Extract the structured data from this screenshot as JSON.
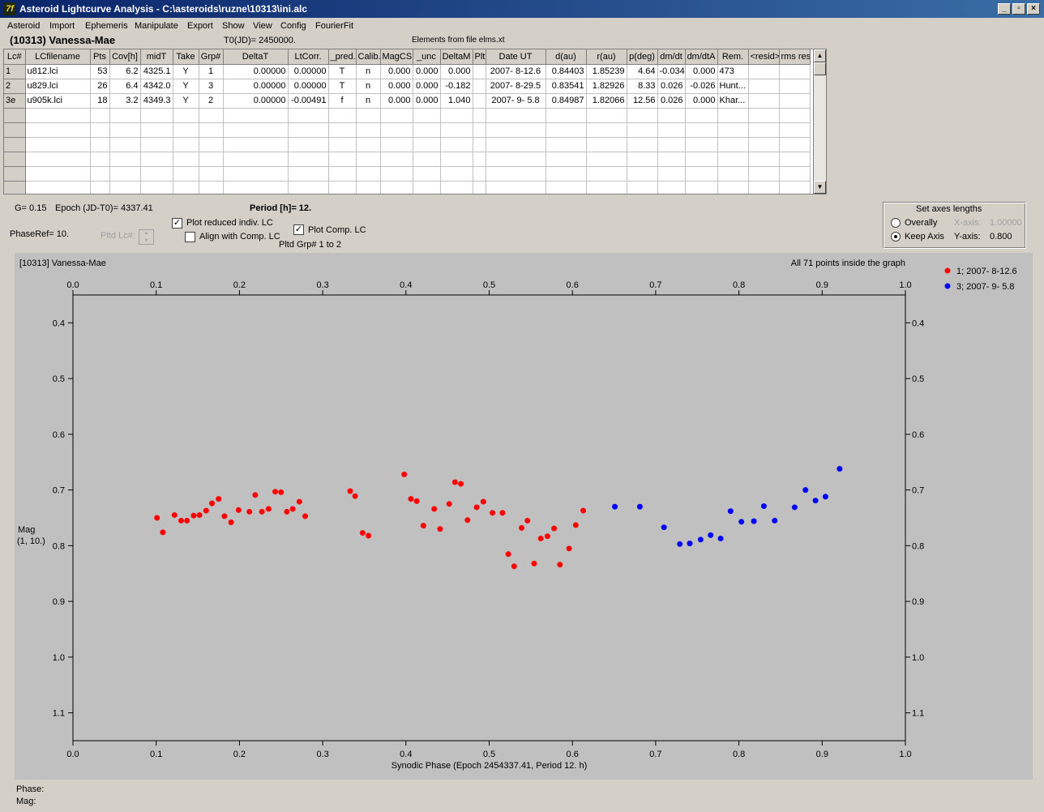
{
  "window": {
    "title": "Asteroid Lightcurve Analysis - C:\\asteroids\\ruzne\\10313\\ini.alc",
    "icon": "7f",
    "controls": [
      "_",
      "▫",
      "×"
    ]
  },
  "menu": [
    "Asteroid",
    "Import",
    "Ephemeris",
    "Manipulate",
    "Export",
    "Show",
    "View",
    "Config",
    "FourierFit"
  ],
  "header": {
    "asteroid_name": "(10313) Vanessa-Mae",
    "t0": "T0(JD)= 2450000.",
    "elements": "Elements from file elms.xt"
  },
  "grid": {
    "columns": [
      "Lc#",
      "LCfilename",
      "Pts",
      "Cov[h]",
      "midT",
      "Take",
      "Grp#",
      "DeltaT",
      "LtCorr.",
      "_pred.",
      "Calib.",
      "MagCS",
      "_unc",
      "DeltaM",
      "Plt",
      "Date UT",
      "d(au)",
      "r(au)",
      "p(deg)",
      "dm/dt",
      "dm/dtA",
      "Rem.",
      "<resid>",
      "rms res"
    ],
    "rows": [
      [
        "1",
        "u812.lci",
        "53",
        "6.2",
        "4325.1",
        "Y",
        "1",
        "0.00000",
        "0.00000",
        "T",
        "n",
        "0.000",
        "0.000",
        "0.000",
        "",
        "2007- 8-12.6",
        "0.84403",
        "1.85239",
        "4.64",
        "-0.034",
        "0.000",
        "473",
        "",
        ""
      ],
      [
        "2",
        "u829.lci",
        "26",
        "6.4",
        "4342.0",
        "Y",
        "3",
        "0.00000",
        "0.00000",
        "T",
        "n",
        "0.000",
        "0.000",
        "-0.182",
        "",
        "2007- 8-29.5",
        "0.83541",
        "1.82926",
        "8.33",
        "0.026",
        "-0.026",
        "Hunt...",
        "",
        ""
      ],
      [
        "3e",
        "u905k.lci",
        "18",
        "3.2",
        "4349.3",
        "Y",
        "2",
        "0.00000",
        "-0.00491",
        "f",
        "n",
        "0.000",
        "0.000",
        "1.040",
        "",
        "2007- 9- 5.8",
        "0.84987",
        "1.82066",
        "12.56",
        "0.026",
        "0.000",
        "Khar...",
        "",
        ""
      ]
    ],
    "empty_rows": 6
  },
  "controls": {
    "g_value": "G= 0.15",
    "epoch": "Epoch (JD-T0)= 4337.41",
    "period": "Period [h]= 12.",
    "phase_ref": "PhaseRef= 10.",
    "pltd_lc": "Pltd Lc#:",
    "plot_reduced": {
      "label": "Plot reduced indiv. LC",
      "checked": true
    },
    "align_comp": {
      "label": "Align with Comp. LC",
      "checked": false
    },
    "plot_comp": {
      "label": "Plot Comp. LC",
      "checked": true
    },
    "pltd_grp": "Pltd Grp#  1   to   2"
  },
  "axes_box": {
    "title": "Set axes lengths",
    "overally": {
      "label": "Overally",
      "selected": false
    },
    "keep_axis": {
      "label": "Keep Axis",
      "selected": true
    },
    "x_axis_label": "X-axis:",
    "x_axis_value": "1.00000",
    "y_axis_label": "Y-axis:",
    "y_axis_value": "0.800"
  },
  "chart_data": {
    "type": "scatter",
    "title": "[10313] Vanessa-Mae",
    "note": "All 71 points inside the graph",
    "xlabel": "Synodic Phase (Epoch 2454337.41, Period 12. h)",
    "ylabel": "Mag",
    "ylabel2": "(1, 10.)",
    "xlim": [
      0.0,
      1.0
    ],
    "ylim": [
      1.15,
      0.35
    ],
    "y_inverted": true,
    "x_ticks": [
      0.0,
      0.1,
      0.2,
      0.3,
      0.4,
      0.5,
      0.6,
      0.7,
      0.8,
      0.9,
      1.0
    ],
    "x_tick_labels": [
      "0.0",
      "0.1",
      "0.2",
      "0.3",
      "0.4",
      "0.5",
      "0.6",
      "0.7",
      "0.8",
      "0.9",
      "1.0"
    ],
    "y_ticks": [
      0.4,
      0.5,
      0.6,
      0.7,
      0.8,
      0.9,
      1.0,
      1.1
    ],
    "y_tick_labels": [
      "0.4",
      "0.5",
      "0.6",
      "0.7",
      "0.8",
      "0.9",
      "1.0",
      "1.1"
    ],
    "legend_position": "top-right",
    "background": "#c0c0c0",
    "series": [
      {
        "name": "1; 2007- 8-12.6",
        "color": "#ff0000",
        "points": [
          [
            0.101,
            0.75
          ],
          [
            0.108,
            0.776
          ],
          [
            0.122,
            0.745
          ],
          [
            0.13,
            0.755
          ],
          [
            0.137,
            0.755
          ],
          [
            0.145,
            0.746
          ],
          [
            0.152,
            0.745
          ],
          [
            0.16,
            0.737
          ],
          [
            0.167,
            0.724
          ],
          [
            0.175,
            0.716
          ],
          [
            0.182,
            0.747
          ],
          [
            0.19,
            0.758
          ],
          [
            0.199,
            0.736
          ],
          [
            0.212,
            0.739
          ],
          [
            0.219,
            0.709
          ],
          [
            0.227,
            0.739
          ],
          [
            0.235,
            0.734
          ],
          [
            0.243,
            0.703
          ],
          [
            0.25,
            0.704
          ],
          [
            0.257,
            0.739
          ],
          [
            0.264,
            0.734
          ],
          [
            0.272,
            0.721
          ],
          [
            0.279,
            0.747
          ],
          [
            0.333,
            0.702
          ],
          [
            0.339,
            0.711
          ],
          [
            0.348,
            0.777
          ],
          [
            0.355,
            0.782
          ],
          [
            0.398,
            0.672
          ],
          [
            0.406,
            0.716
          ],
          [
            0.413,
            0.72
          ],
          [
            0.421,
            0.764
          ],
          [
            0.434,
            0.734
          ],
          [
            0.441,
            0.77
          ],
          [
            0.452,
            0.725
          ],
          [
            0.459,
            0.686
          ],
          [
            0.466,
            0.689
          ],
          [
            0.474,
            0.754
          ],
          [
            0.485,
            0.731
          ],
          [
            0.493,
            0.721
          ],
          [
            0.504,
            0.741
          ],
          [
            0.516,
            0.741
          ],
          [
            0.523,
            0.815
          ],
          [
            0.53,
            0.837
          ],
          [
            0.539,
            0.768
          ],
          [
            0.546,
            0.755
          ],
          [
            0.554,
            0.832
          ],
          [
            0.562,
            0.787
          ],
          [
            0.57,
            0.783
          ],
          [
            0.578,
            0.769
          ],
          [
            0.585,
            0.834
          ],
          [
            0.596,
            0.805
          ],
          [
            0.604,
            0.763
          ],
          [
            0.613,
            0.737
          ]
        ]
      },
      {
        "name": "3; 2007- 9- 5.8",
        "color": "#0000ff",
        "points": [
          [
            0.651,
            0.73
          ],
          [
            0.681,
            0.73
          ],
          [
            0.71,
            0.767
          ],
          [
            0.729,
            0.797
          ],
          [
            0.741,
            0.796
          ],
          [
            0.754,
            0.789
          ],
          [
            0.766,
            0.781
          ],
          [
            0.778,
            0.787
          ],
          [
            0.79,
            0.738
          ],
          [
            0.803,
            0.757
          ],
          [
            0.818,
            0.756
          ],
          [
            0.83,
            0.729
          ],
          [
            0.843,
            0.755
          ],
          [
            0.867,
            0.731
          ],
          [
            0.88,
            0.7
          ],
          [
            0.892,
            0.719
          ],
          [
            0.904,
            0.712
          ],
          [
            0.921,
            0.662
          ]
        ]
      }
    ]
  },
  "status": {
    "phase": "Phase:",
    "mag": "Mag:"
  }
}
